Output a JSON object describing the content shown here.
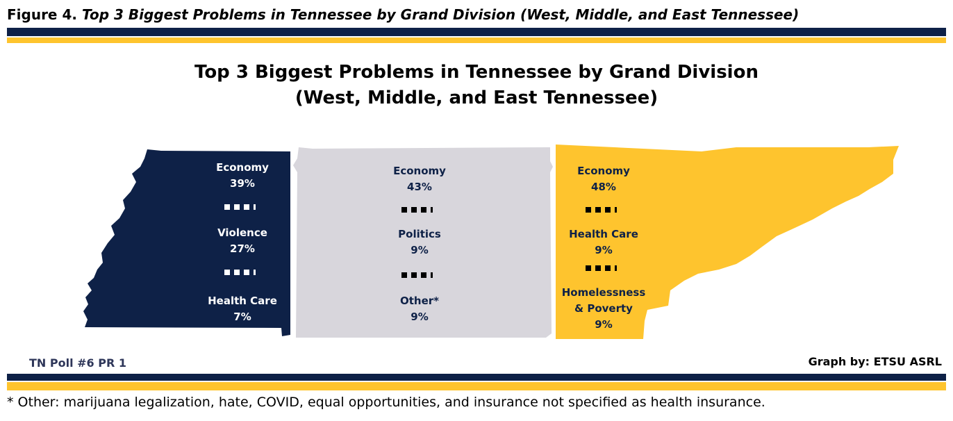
{
  "figure_caption": {
    "label": "Figure 4.",
    "title": "Top 3 Biggest Problems in Tennessee by Grand Division (West, Middle, and East Tennessee)"
  },
  "title_line1": "Top 3 Biggest Problems in Tennessee by Grand Division",
  "title_line2": "(West, Middle, and East Tennessee)",
  "colors": {
    "navy": "#0e2147",
    "gray": "#d8d6dc",
    "gold": "#fec42e",
    "text_dark": "#0e2147",
    "text_light": "#ffffff"
  },
  "regions": [
    {
      "name": "West",
      "items": [
        {
          "label_lines": [
            "Economy"
          ],
          "value": "39%"
        },
        {
          "label_lines": [
            "Violence"
          ],
          "value": "27%"
        },
        {
          "label_lines": [
            "Health Care"
          ],
          "value": "7%"
        }
      ]
    },
    {
      "name": "Middle",
      "items": [
        {
          "label_lines": [
            "Economy"
          ],
          "value": "43%"
        },
        {
          "label_lines": [
            "Politics"
          ],
          "value": "9%"
        },
        {
          "label_lines": [
            "Other*"
          ],
          "value": "9%"
        }
      ]
    },
    {
      "name": "East",
      "items": [
        {
          "label_lines": [
            "Economy"
          ],
          "value": "48%"
        },
        {
          "label_lines": [
            "Health Care"
          ],
          "value": "9%"
        },
        {
          "label_lines": [
            "Homelessness",
            "& Poverty"
          ],
          "value": "9%"
        }
      ]
    }
  ],
  "poll_label": "TN Poll #6 PR 1",
  "credit": "Graph by: ETSU ASRL",
  "footnote": "* Other: marijuana legalization, hate, COVID, equal opportunities, and insurance not specified as health insurance."
}
